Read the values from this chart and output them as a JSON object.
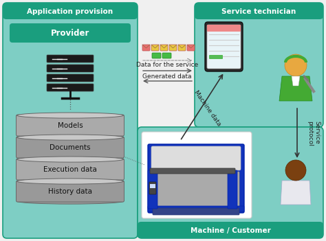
{
  "bg_color": "#f0f0f0",
  "teal_light": "#7ecec4",
  "teal_dark": "#1a9e7e",
  "teal_mid": "#5bbfb0",
  "provider_text": "Provider",
  "app_provision_text": "Application provision",
  "service_tech_text": "Service technician",
  "machine_customer_text": "Machine / Customer",
  "db_labels": [
    "Models",
    "Documents",
    "Execution data",
    "History data"
  ],
  "arrow_label_right1": "Data for the service",
  "arrow_label_left": "Generated data",
  "machine_data_label": "Machine data",
  "service_protocol_label": "Service\nprotocol",
  "env_colors_top": [
    "#e87070",
    "#e8c840",
    "#e8c840",
    "#e8c840",
    "#e8c840",
    "#e87070"
  ],
  "env_colors_bot": [
    "#55cc55",
    "#55cc55"
  ]
}
